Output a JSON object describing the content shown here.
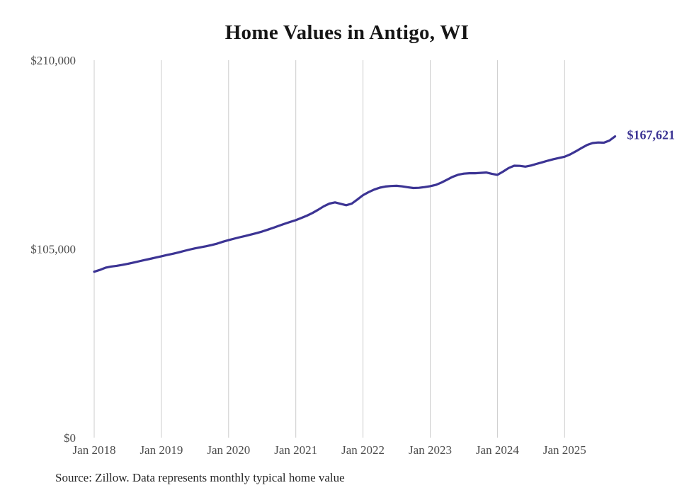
{
  "page": {
    "background": "#ffffff"
  },
  "chart_data": {
    "type": "line",
    "title": "Home Values in Antigo, WI",
    "x_start": "2018-01",
    "frequency": "monthly",
    "series": [
      {
        "name": "Typical home value",
        "color": "#3c3494",
        "values": [
          92300,
          93300,
          94500,
          95200,
          95600,
          96100,
          96700,
          97400,
          98100,
          98800,
          99500,
          100200,
          100900,
          101600,
          102300,
          103000,
          103800,
          104600,
          105300,
          105900,
          106500,
          107200,
          108000,
          109000,
          109900,
          110700,
          111500,
          112200,
          113000,
          113800,
          114700,
          115700,
          116800,
          117900,
          119000,
          120000,
          121000,
          122200,
          123500,
          125000,
          126800,
          128700,
          130200,
          130900,
          130100,
          129300,
          130200,
          132500,
          134900,
          136600,
          138000,
          139100,
          139700,
          140000,
          140100,
          139800,
          139300,
          138900,
          139000,
          139400,
          139900,
          140600,
          141900,
          143500,
          145100,
          146300,
          146900,
          147100,
          147100,
          147300,
          147500,
          146800,
          146200,
          148000,
          150000,
          151300,
          151200,
          150800,
          151400,
          152300,
          153200,
          154100,
          154900,
          155600,
          156300,
          157600,
          159300,
          161100,
          162800,
          163900,
          164200,
          164100,
          165300,
          167621
        ]
      }
    ],
    "end_label": "$167,621",
    "last_value": 167621,
    "ylim": [
      0,
      210000
    ],
    "yticks": [
      {
        "value": 0,
        "label": "$0"
      },
      {
        "value": 105000,
        "label": "$105,000"
      },
      {
        "value": 210000,
        "label": "$210,000"
      }
    ],
    "xticks": [
      {
        "label": "Jan 2018"
      },
      {
        "label": "Jan 2019"
      },
      {
        "label": "Jan 2020"
      },
      {
        "label": "Jan 2021"
      },
      {
        "label": "Jan 2022"
      },
      {
        "label": "Jan 2023"
      },
      {
        "label": "Jan 2024"
      },
      {
        "label": "Jan 2025"
      }
    ],
    "grid": "vertical",
    "gridline_color": "#cccccc",
    "axis_label_color": "#4d4d4d",
    "legend": "none"
  },
  "footer": {
    "source": "Source: Zillow. Data represents monthly typical home value"
  }
}
